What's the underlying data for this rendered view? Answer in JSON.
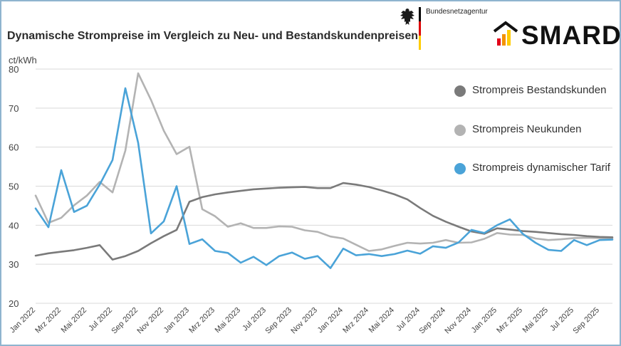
{
  "header": {
    "title": "Dynamische Strompreise im Vergleich zu Neu- und Bestandskundenpreisen",
    "agency": "Bundesnetzagentur",
    "brand": "SMARD"
  },
  "colors": {
    "bestand": "#7a7a7a",
    "neu": "#b3b3b3",
    "dynamisch": "#4aa3d8",
    "grid": "#d9d9d9",
    "axis_text": "#444444"
  },
  "chart_data": {
    "type": "line",
    "ylabel": "ct/kWh",
    "ylim": [
      20,
      80
    ],
    "yticks": [
      20,
      30,
      40,
      50,
      60,
      70,
      80
    ],
    "grid": "horizontal",
    "legend_position": "right",
    "x": [
      "Jan 2022",
      "Feb 2022",
      "Mrz 2022",
      "Apr 2022",
      "Mai 2022",
      "Jun 2022",
      "Jul 2022",
      "Aug 2022",
      "Sep 2022",
      "Okt 2022",
      "Nov 2022",
      "Dez 2022",
      "Jan 2023",
      "Feb 2023",
      "Mrz 2023",
      "Apr 2023",
      "Mai 2023",
      "Jun 2023",
      "Jul 2023",
      "Aug 2023",
      "Sep 2023",
      "Okt 2023",
      "Nov 2023",
      "Dez 2023",
      "Jan 2024",
      "Feb 2024",
      "Mrz 2024",
      "Apr 2024",
      "Mai 2024",
      "Jun 2024",
      "Jul 2024",
      "Aug 2024",
      "Sep 2024",
      "Okt 2024",
      "Nov 2024",
      "Dez 2024",
      "Jan 2025",
      "Feb 2025",
      "Mrz 2025",
      "Apr 2025",
      "Mai 2025",
      "Jun 2025",
      "Jul 2025",
      "Aug 2025",
      "Sep 2025",
      "Okt 2025"
    ],
    "xtick_labels": [
      "Jan 2022",
      "Mrz 2022",
      "Mai 2022",
      "Jul 2022",
      "Sep 2022",
      "Nov 2022",
      "Jan 2023",
      "Mrz 2023",
      "Mai 2023",
      "Jul 2023",
      "Sep 2023",
      "Nov 2023",
      "Jan 2024",
      "Mrz 2024",
      "Mai 2024",
      "Jul 2024",
      "Sep 2024",
      "Nov 2024",
      "Jan 2025",
      "Mrz 2025",
      "Mai 2025",
      "Jul 2025",
      "Sep 2025"
    ],
    "series": [
      {
        "name": "Strompreis Bestandskunden",
        "color_key": "bestand",
        "values": [
          32.2,
          32.8,
          33.2,
          33.6,
          34.2,
          34.9,
          31.2,
          32.1,
          33.4,
          35.4,
          37.2,
          38.8,
          46.0,
          47.2,
          47.9,
          48.4,
          48.8,
          49.2,
          49.4,
          49.6,
          49.7,
          49.8,
          49.5,
          49.5,
          50.8,
          50.4,
          49.8,
          48.9,
          47.9,
          46.6,
          44.4,
          42.4,
          40.9,
          39.6,
          38.4,
          37.8,
          39.2,
          38.9,
          38.5,
          38.3,
          38.0,
          37.7,
          37.5,
          37.2,
          37.0,
          36.9
        ]
      },
      {
        "name": "Strompreis Neukunden",
        "color_key": "neu",
        "values": [
          47.6,
          40.6,
          41.9,
          45.1,
          47.6,
          51.1,
          48.4,
          59.1,
          78.9,
          72.1,
          64.2,
          58.2,
          60.1,
          44.1,
          42.3,
          39.6,
          40.5,
          39.3,
          39.3,
          39.7,
          39.6,
          38.7,
          38.3,
          37.1,
          36.6,
          35.0,
          33.4,
          33.8,
          34.7,
          35.5,
          35.3,
          35.5,
          36.2,
          35.5,
          35.6,
          36.5,
          38.0,
          37.6,
          37.5,
          36.6,
          36.2,
          36.4,
          36.7,
          36.8,
          36.7,
          36.6
        ]
      },
      {
        "name": "Strompreis dynamischer Tarif",
        "color_key": "dynamisch",
        "values": [
          44.3,
          39.5,
          54.1,
          43.4,
          45.0,
          50.4,
          56.7,
          75.1,
          61.1,
          37.9,
          41.0,
          50.0,
          35.2,
          36.4,
          33.4,
          32.9,
          30.4,
          31.9,
          29.8,
          32.1,
          33.0,
          31.4,
          32.1,
          29.0,
          34.0,
          32.3,
          32.6,
          32.1,
          32.6,
          33.5,
          32.7,
          34.6,
          34.2,
          35.6,
          38.8,
          38.0,
          40.0,
          41.5,
          37.8,
          35.5,
          33.7,
          33.4,
          36.2,
          34.9,
          36.2,
          36.3
        ]
      }
    ]
  }
}
